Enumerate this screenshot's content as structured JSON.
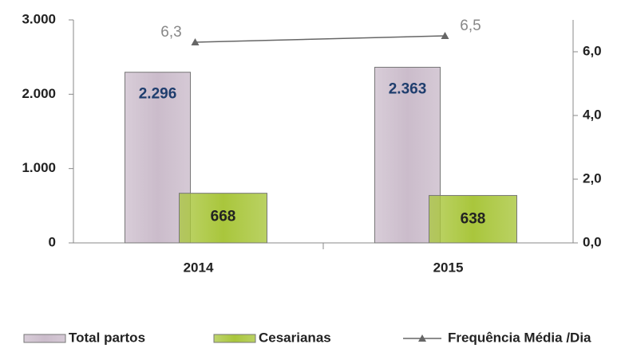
{
  "chart_data": {
    "type": "bar",
    "categories": [
      "2014",
      "2015"
    ],
    "series": [
      {
        "name": "Total partos",
        "color": "#cbbccb",
        "values": [
          2296,
          2363
        ],
        "value_labels": [
          "2.296",
          "2.363"
        ]
      },
      {
        "name": "Cesarianas",
        "color": "#a9c63c",
        "values": [
          668,
          638
        ]
      },
      {
        "name": "Frequência Média /Dia",
        "color": "#666666",
        "type": "line",
        "axis": "y2",
        "values": [
          6.3,
          6.5
        ],
        "value_labels": [
          "6,3",
          "6,5"
        ]
      }
    ],
    "ylim": [
      0,
      3000
    ],
    "yticks": [
      0,
      {
        "value": 1000,
        "label": "1.000"
      },
      {
        "value": 2000,
        "label": "2.000"
      },
      {
        "value": 3000,
        "label": "3.000"
      }
    ],
    "y2lim": [
      0,
      7
    ],
    "y2ticks": [
      {
        "value": 0,
        "label": "0,0"
      },
      {
        "value": 2,
        "label": "2,0"
      },
      {
        "value": 4,
        "label": "4,0"
      },
      {
        "value": 6,
        "label": "6,0"
      }
    ],
    "legend": "bottom"
  }
}
